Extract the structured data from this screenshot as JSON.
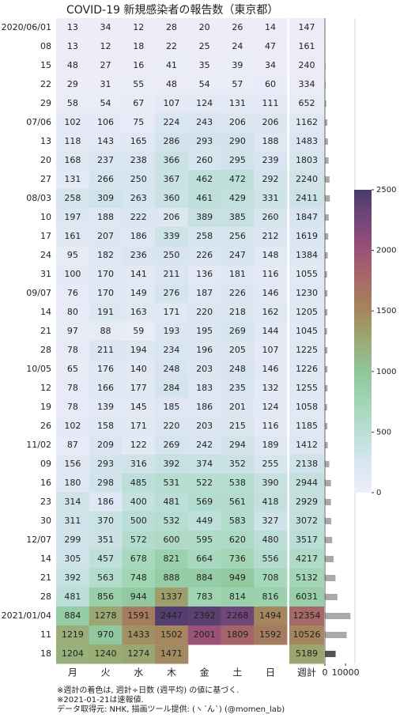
{
  "chart_data": {
    "type": "heatmap",
    "title": "COVID-19 新規感染者の報告数（東京都）",
    "rows": [
      "2020/06/01",
      "08",
      "15",
      "22",
      "29",
      "07/06",
      "13",
      "20",
      "27",
      "08/03",
      "10",
      "17",
      "24",
      "31",
      "09/07",
      "14",
      "21",
      "28",
      "10/05",
      "12",
      "19",
      "26",
      "11/02",
      "09",
      "16",
      "23",
      "30",
      "12/07",
      "14",
      "21",
      "28",
      "2021/01/04",
      "11",
      "18"
    ],
    "columns": [
      "月",
      "火",
      "水",
      "木",
      "金",
      "土",
      "日"
    ],
    "total_label": "週計",
    "values": [
      [
        13,
        34,
        12,
        28,
        20,
        26,
        14
      ],
      [
        13,
        12,
        18,
        22,
        25,
        24,
        47
      ],
      [
        48,
        27,
        16,
        41,
        35,
        39,
        34
      ],
      [
        29,
        31,
        55,
        48,
        54,
        57,
        60
      ],
      [
        58,
        54,
        67,
        107,
        124,
        131,
        111
      ],
      [
        102,
        106,
        75,
        224,
        243,
        206,
        206
      ],
      [
        118,
        143,
        165,
        286,
        293,
        290,
        188
      ],
      [
        168,
        237,
        238,
        366,
        260,
        295,
        239
      ],
      [
        131,
        266,
        250,
        367,
        462,
        472,
        292
      ],
      [
        258,
        309,
        263,
        360,
        461,
        429,
        331
      ],
      [
        197,
        188,
        222,
        206,
        389,
        385,
        260
      ],
      [
        161,
        207,
        186,
        339,
        258,
        256,
        212
      ],
      [
        95,
        182,
        236,
        250,
        226,
        247,
        148
      ],
      [
        100,
        170,
        141,
        211,
        136,
        181,
        116
      ],
      [
        76,
        170,
        149,
        276,
        187,
        226,
        146
      ],
      [
        80,
        191,
        163,
        171,
        220,
        218,
        162
      ],
      [
        97,
        88,
        59,
        193,
        195,
        269,
        144
      ],
      [
        78,
        211,
        194,
        234,
        196,
        205,
        107
      ],
      [
        65,
        176,
        140,
        248,
        203,
        248,
        146
      ],
      [
        78,
        166,
        177,
        284,
        183,
        235,
        132
      ],
      [
        78,
        139,
        145,
        185,
        186,
        201,
        124
      ],
      [
        102,
        158,
        171,
        220,
        203,
        215,
        116
      ],
      [
        87,
        209,
        122,
        269,
        242,
        294,
        189
      ],
      [
        156,
        293,
        316,
        392,
        374,
        352,
        255
      ],
      [
        180,
        298,
        485,
        531,
        522,
        538,
        390
      ],
      [
        314,
        186,
        400,
        481,
        569,
        561,
        418
      ],
      [
        311,
        370,
        500,
        532,
        449,
        583,
        327
      ],
      [
        299,
        351,
        572,
        600,
        595,
        620,
        480
      ],
      [
        305,
        457,
        678,
        821,
        664,
        736,
        556
      ],
      [
        392,
        563,
        748,
        888,
        884,
        949,
        708
      ],
      [
        481,
        856,
        944,
        1337,
        783,
        814,
        816
      ],
      [
        884,
        1278,
        1591,
        2447,
        2392,
        2268,
        1494
      ],
      [
        1219,
        970,
        1433,
        1502,
        2001,
        1809,
        1592
      ],
      [
        1204,
        1240,
        1274,
        1471,
        null,
        null,
        null
      ]
    ],
    "weekly_totals": [
      147,
      161,
      240,
      334,
      652,
      1162,
      1483,
      1803,
      2240,
      2411,
      1847,
      1619,
      1384,
      1055,
      1230,
      1205,
      1045,
      1225,
      1226,
      1255,
      1058,
      1185,
      1412,
      2138,
      2944,
      2929,
      3072,
      3517,
      4217,
      5132,
      6031,
      12354,
      10526,
      5189
    ],
    "colorscale": [
      {
        "value": 0,
        "color": "#efeefa"
      },
      {
        "value": 250,
        "color": "#d8e5f0"
      },
      {
        "value": 500,
        "color": "#b9ded6"
      },
      {
        "value": 750,
        "color": "#a1d5b4"
      },
      {
        "value": 1000,
        "color": "#8fc69a"
      },
      {
        "value": 1250,
        "color": "#9aab74"
      },
      {
        "value": 1500,
        "color": "#a5865e"
      },
      {
        "value": 1750,
        "color": "#a86a66"
      },
      {
        "value": 2000,
        "color": "#9a5278"
      },
      {
        "value": 2250,
        "color": "#73477a"
      },
      {
        "value": 2500,
        "color": "#4a3b6c"
      }
    ],
    "clim": [
      0,
      2500
    ],
    "cticks": [
      0,
      500,
      1000,
      1500,
      2000,
      2500
    ],
    "bar_xlim": [
      0,
      13000
    ],
    "bar_xticks": [
      0,
      10000
    ],
    "bar_color": "#a9a9a9",
    "provisional_bar_color": "#555555",
    "notes": [
      "※週計の着色は, 週計÷日数 (週平均) の値に基づく.",
      "※2021-01-21は速報値.",
      "データ取得元: NHK, 描画ツール提供: (ヽ´ん`) (@momen_lab)"
    ]
  }
}
